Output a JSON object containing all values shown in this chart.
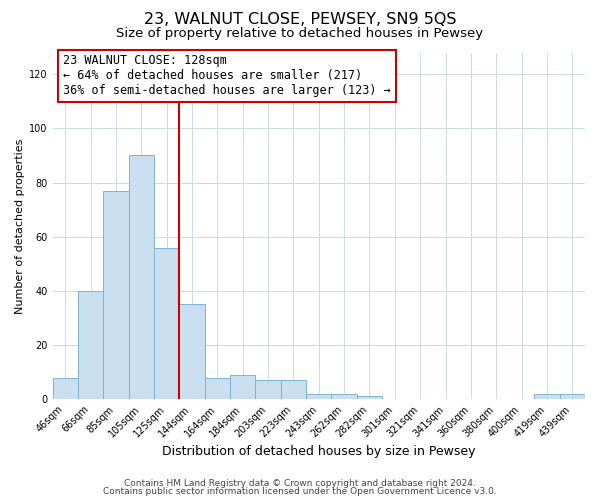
{
  "title": "23, WALNUT CLOSE, PEWSEY, SN9 5QS",
  "subtitle": "Size of property relative to detached houses in Pewsey",
  "xlabel": "Distribution of detached houses by size in Pewsey",
  "ylabel": "Number of detached properties",
  "bar_color": "#c9dff0",
  "bar_edge_color": "#7fb3d3",
  "bar_edge_width": 0.7,
  "categories": [
    "46sqm",
    "66sqm",
    "85sqm",
    "105sqm",
    "125sqm",
    "144sqm",
    "164sqm",
    "184sqm",
    "203sqm",
    "223sqm",
    "243sqm",
    "262sqm",
    "282sqm",
    "301sqm",
    "321sqm",
    "341sqm",
    "360sqm",
    "380sqm",
    "400sqm",
    "419sqm",
    "439sqm"
  ],
  "values": [
    8,
    40,
    77,
    90,
    56,
    35,
    8,
    9,
    7,
    7,
    2,
    2,
    1,
    0,
    0,
    0,
    0,
    0,
    0,
    2,
    2
  ],
  "vline_x_index": 4,
  "vline_color": "#cc0000",
  "annotation_text": "23 WALNUT CLOSE: 128sqm\n← 64% of detached houses are smaller (217)\n36% of semi-detached houses are larger (123) →",
  "annotation_box_color": "#ffffff",
  "annotation_box_edge_color": "#cc0000",
  "ylim_max": 128,
  "yticks": [
    0,
    20,
    40,
    60,
    80,
    100,
    120
  ],
  "footer_line1": "Contains HM Land Registry data © Crown copyright and database right 2024.",
  "footer_line2": "Contains public sector information licensed under the Open Government Licence v3.0.",
  "background_color": "#ffffff",
  "grid_color": "#ccd9e8",
  "title_fontsize": 11.5,
  "subtitle_fontsize": 9.5,
  "xlabel_fontsize": 9,
  "ylabel_fontsize": 8,
  "tick_fontsize": 7,
  "annotation_fontsize": 8.5,
  "footer_fontsize": 6.5
}
